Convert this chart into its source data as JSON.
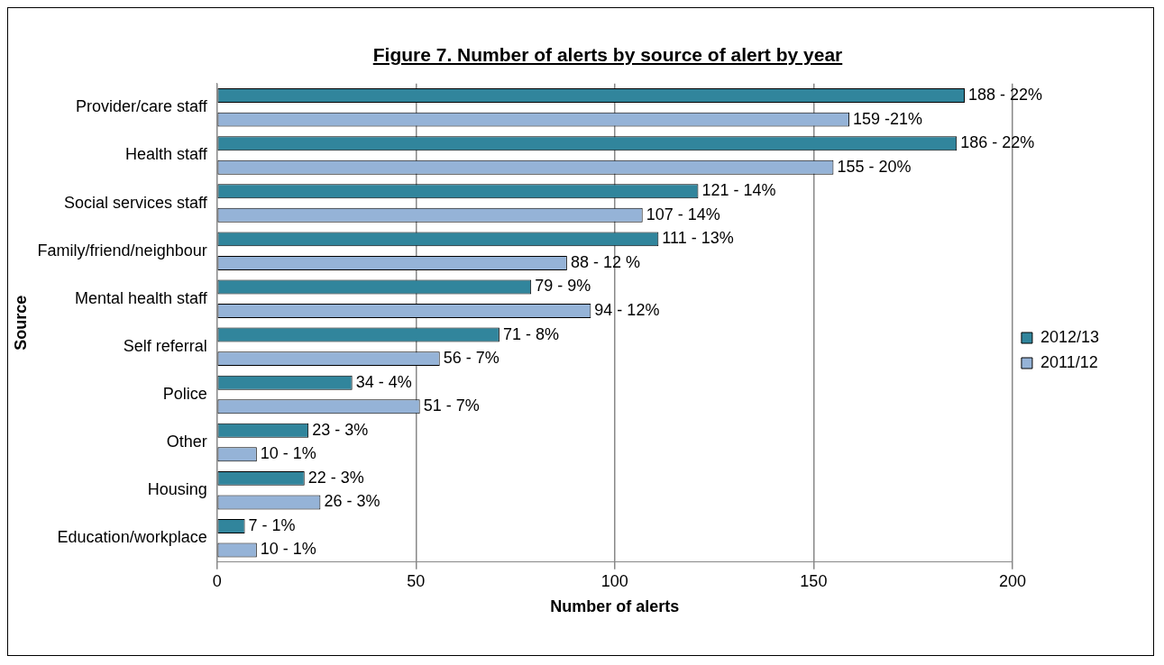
{
  "chart_data": {
    "type": "bar",
    "orientation": "horizontal",
    "title": "Figure 7. Number of alerts by source of alert by year",
    "xlabel": "Number of alerts",
    "ylabel": "Source",
    "categories": [
      "Provider/care staff",
      "Health staff",
      "Social services staff",
      "Family/friend/neighbour",
      "Mental health staff",
      "Self referral",
      "Police",
      "Other",
      "Housing",
      "Education/workplace"
    ],
    "series": [
      {
        "name": "2012/13",
        "color": "#31859c",
        "values": [
          188,
          186,
          121,
          111,
          79,
          71,
          34,
          23,
          22,
          7
        ],
        "value_labels": [
          "188 - 22%",
          "186 - 22%",
          "121 - 14%",
          "111 - 13%",
          "79 - 9%",
          "71 - 8%",
          "34 - 4%",
          "23 - 3%",
          "22 - 3%",
          "7 - 1%"
        ]
      },
      {
        "name": "2011/12",
        "color": "#95b3d7",
        "values": [
          159,
          155,
          107,
          88,
          94,
          56,
          51,
          10,
          26,
          10
        ],
        "value_labels": [
          "159 -21%",
          "155 - 20%",
          "107 - 14%",
          "88 - 12 %",
          "94 - 12%",
          "56 - 7%",
          "51 - 7%",
          "10 - 1%",
          "26 - 3%",
          "10 - 1%"
        ]
      }
    ],
    "xlim": [
      0,
      200
    ],
    "xticks": [
      0,
      50,
      100,
      150,
      200
    ],
    "grid": "x",
    "legend": "right"
  }
}
